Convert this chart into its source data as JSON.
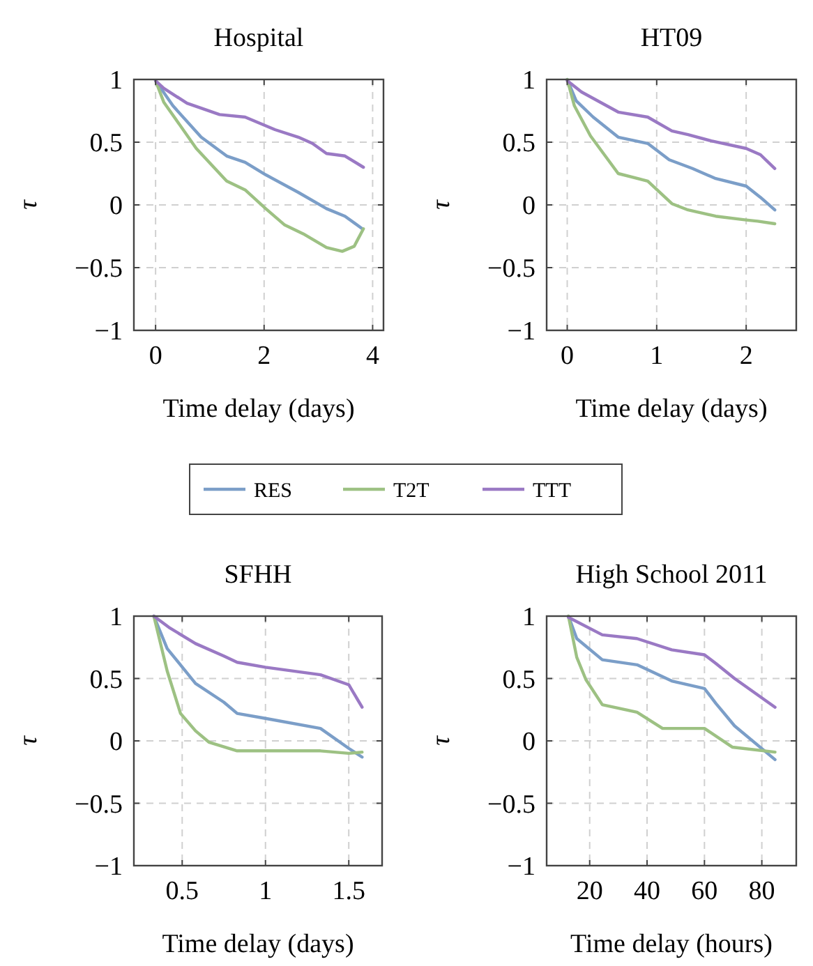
{
  "chart_data": [
    {
      "type": "line",
      "title": "Hospital",
      "xlabel": "Time delay (days)",
      "ylabel": "τ",
      "xlim": [
        -0.4,
        4.2
      ],
      "xticks": [
        0,
        2,
        4
      ],
      "ylim": [
        -1,
        1
      ],
      "yticks": [
        -1,
        -0.5,
        0,
        0.5,
        1
      ],
      "grid": true,
      "legend": "bottom",
      "marker": "none",
      "line_style": "solid",
      "series": [
        {
          "name": "RES",
          "color": "#7b9ec8",
          "x": [
            0,
            0.32,
            0.84,
            1.31,
            1.65,
            2.03,
            2.63,
            3.15,
            3.49,
            3.81
          ],
          "values": [
            0.99,
            0.79,
            0.54,
            0.39,
            0.34,
            0.24,
            0.1,
            -0.03,
            -0.09,
            -0.19
          ]
        },
        {
          "name": "T2T",
          "color": "#9dc183",
          "x": [
            0,
            0.15,
            0.75,
            1.31,
            1.65,
            2.03,
            2.38,
            2.72,
            3.15,
            3.44,
            3.66,
            3.83
          ],
          "values": [
            0.99,
            0.82,
            0.45,
            0.19,
            0.12,
            -0.03,
            -0.16,
            -0.23,
            -0.34,
            -0.37,
            -0.33,
            -0.19
          ]
        },
        {
          "name": "TTT",
          "color": "#9a79c4",
          "x": [
            0,
            0.15,
            0.58,
            1.18,
            1.65,
            2.2,
            2.63,
            2.89,
            3.15,
            3.49,
            3.83
          ],
          "values": [
            0.99,
            0.93,
            0.81,
            0.72,
            0.7,
            0.6,
            0.54,
            0.49,
            0.41,
            0.39,
            0.3
          ]
        }
      ]
    },
    {
      "type": "line",
      "title": "HT09",
      "xlabel": "Time delay (days)",
      "ylabel": "τ",
      "xlim": [
        -0.23,
        2.56
      ],
      "xticks": [
        0,
        1,
        2
      ],
      "ylim": [
        -1,
        1
      ],
      "yticks": [
        -1,
        -0.5,
        0,
        0.5,
        1
      ],
      "grid": true,
      "marker": "none",
      "line_style": "solid",
      "series": [
        {
          "color": "#7b9ec8",
          "x": [
            0,
            0.1,
            0.29,
            0.57,
            0.9,
            1.14,
            1.4,
            1.66,
            2.0,
            2.16,
            2.32
          ],
          "values": [
            1,
            0.83,
            0.7,
            0.54,
            0.49,
            0.36,
            0.29,
            0.21,
            0.15,
            0.06,
            -0.04
          ]
        },
        {
          "color": "#9dc183",
          "x": [
            0,
            0.08,
            0.26,
            0.57,
            0.9,
            1.17,
            1.35,
            1.66,
            2.0,
            2.13,
            2.32
          ],
          "values": [
            1,
            0.79,
            0.55,
            0.25,
            0.19,
            0.01,
            -0.04,
            -0.09,
            -0.12,
            -0.13,
            -0.15
          ]
        },
        {
          "color": "#9a79c4",
          "x": [
            0,
            0.16,
            0.57,
            0.9,
            1.17,
            1.35,
            1.61,
            2.0,
            2.16,
            2.32
          ],
          "values": [
            0.99,
            0.9,
            0.74,
            0.7,
            0.59,
            0.56,
            0.51,
            0.45,
            0.4,
            0.29
          ]
        }
      ]
    },
    {
      "type": "line",
      "title": "SFHH",
      "xlabel": "Time delay (days)",
      "ylabel": "τ",
      "xlim": [
        0.21,
        1.7
      ],
      "xticks": [
        0.5,
        1,
        1.5
      ],
      "ylim": [
        -1,
        1
      ],
      "yticks": [
        -1,
        -0.5,
        0,
        0.5,
        1
      ],
      "grid": true,
      "marker": "none",
      "line_style": "solid",
      "series": [
        {
          "color": "#7b9ec8",
          "x": [
            0.33,
            0.41,
            0.58,
            0.75,
            0.83,
            1.0,
            1.33,
            1.5,
            1.58
          ],
          "values": [
            1,
            0.74,
            0.46,
            0.31,
            0.22,
            0.18,
            0.1,
            -0.06,
            -0.13
          ]
        },
        {
          "color": "#9dc183",
          "x": [
            0.33,
            0.41,
            0.49,
            0.58,
            0.66,
            0.83,
            1.33,
            1.5,
            1.58
          ],
          "values": [
            1,
            0.56,
            0.22,
            0.08,
            -0.01,
            -0.08,
            -0.08,
            -0.1,
            -0.09
          ]
        },
        {
          "color": "#9a79c4",
          "x": [
            0.33,
            0.42,
            0.58,
            0.75,
            0.83,
            1.0,
            1.33,
            1.5,
            1.58
          ],
          "values": [
            1,
            0.91,
            0.78,
            0.68,
            0.63,
            0.59,
            0.53,
            0.45,
            0.27
          ]
        }
      ]
    },
    {
      "type": "line",
      "title": "High School 2011",
      "xlabel": "Time delay (hours)",
      "ylabel": "τ",
      "xlim": [
        5,
        92
      ],
      "xticks": [
        20,
        40,
        60,
        80
      ],
      "ylim": [
        -1,
        1
      ],
      "yticks": [
        -1,
        -0.5,
        0,
        0.5,
        1
      ],
      "grid": true,
      "marker": "none",
      "line_style": "solid",
      "series": [
        {
          "color": "#7b9ec8",
          "x": [
            12.6,
            15.5,
            24.4,
            36.5,
            48.6,
            60,
            64,
            70.5,
            84.6
          ],
          "values": [
            1,
            0.82,
            0.65,
            0.61,
            0.48,
            0.42,
            0.3,
            0.12,
            -0.15
          ]
        },
        {
          "color": "#9dc183",
          "x": [
            12.6,
            15.5,
            18.7,
            24.4,
            36.5,
            45.4,
            60,
            69.7,
            84.6
          ],
          "values": [
            1,
            0.67,
            0.49,
            0.29,
            0.23,
            0.1,
            0.1,
            -0.05,
            -0.09
          ]
        },
        {
          "color": "#9a79c4",
          "x": [
            12.6,
            24.4,
            36.5,
            48.6,
            60,
            64,
            70.5,
            84.6
          ],
          "values": [
            0.99,
            0.85,
            0.82,
            0.73,
            0.69,
            0.62,
            0.5,
            0.27
          ]
        }
      ]
    }
  ]
}
